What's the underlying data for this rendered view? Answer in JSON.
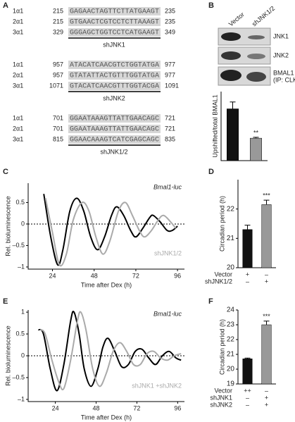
{
  "panel_labels": [
    "A",
    "B",
    "C",
    "D",
    "E",
    "F"
  ],
  "alignments": [
    {
      "rows": [
        {
          "name": "1α1",
          "start": 215,
          "sequence": "GAGAACTAGTTCTTATGAAGT",
          "end": 235
        },
        {
          "name": "2α1",
          "start": 215,
          "sequence": "GTGAACTCGTCCTCTTAAAGT",
          "end": 235
        },
        {
          "name": "3α1",
          "start": 329,
          "sequence": "GGGAGCTGGTCCTCATGAAGT",
          "end": 349
        }
      ],
      "shrna": "shJNK1"
    },
    {
      "rows": [
        {
          "name": "1α1",
          "start": 957,
          "sequence": "ATACATCAACGTCTGGTATGA",
          "end": 977
        },
        {
          "name": "2α1",
          "start": 957,
          "sequence": "GTATATTACTGTTTGGTATGA",
          "end": 977
        },
        {
          "name": "3α1",
          "start": 1071,
          "sequence": "GTACATCAACGTTTGGTACGA",
          "end": 1091
        }
      ],
      "shrna": "shJNK2"
    },
    {
      "rows": [
        {
          "name": "1α1",
          "start": 701,
          "sequence": "GGAATAAAGTTATTGAACAGC",
          "end": 721
        },
        {
          "name": "2α1",
          "start": 701,
          "sequence": "GGAATAAAGTTATTGAACAGC",
          "end": 721
        },
        {
          "name": "3α1",
          "start": 815,
          "sequence": "GGAACAAAGTCATCGAGCAGC",
          "end": 835
        }
      ],
      "shrna": "shJNK1/2"
    }
  ],
  "blot": {
    "labels": [
      "JNK1",
      "JNK2",
      "BMAL1",
      "(IP: CLK)"
    ]
  },
  "chart_data": [
    {
      "type": "bar",
      "ylabel": "Upshifted/total BMAL1",
      "categories": [
        "Vector",
        "shJNK1/2"
      ],
      "values": [
        0.3,
        0.13
      ],
      "errors": [
        0.04,
        0.005
      ],
      "colors": [
        "#111111",
        "#999999"
      ],
      "ylim": [
        0,
        0.4
      ],
      "significance": "**"
    },
    {
      "type": "line",
      "ylabel": "Rel. bioluminescence",
      "xlabel": "Time after Dex (h)",
      "annotation": "Bmal1-luc",
      "xlim": [
        10,
        100
      ],
      "xticks": [
        24,
        48,
        72,
        96
      ],
      "ylim": [
        -1.05,
        0.95
      ],
      "yticks": [
        {
          "value": -1,
          "label": "–1"
        },
        {
          "value": -0.5,
          "label": "–0.5"
        },
        0,
        0.5
      ],
      "hline": 0,
      "series": [
        {
          "color": "#000000",
          "x": [
            19,
            23,
            27,
            30,
            34,
            38,
            42,
            46,
            50,
            54,
            58,
            61,
            65,
            69,
            72,
            76,
            80,
            82,
            86,
            90,
            93,
            96
          ],
          "values": [
            0.7,
            -0.3,
            -0.95,
            -0.6,
            0.3,
            0.6,
            0.3,
            -0.3,
            -0.6,
            -0.3,
            0.2,
            0.4,
            0.2,
            -0.15,
            -0.3,
            -0.1,
            0.15,
            0.2,
            0.05,
            -0.15,
            -0.15,
            -0.05
          ]
        },
        {
          "name": "shJNK1/2",
          "color": "#aaaaaa",
          "x": [
            20,
            24,
            28,
            32,
            36,
            41,
            45,
            49,
            53,
            57,
            62,
            66,
            70,
            74,
            77,
            81,
            85,
            88,
            92,
            95
          ],
          "values": [
            0.6,
            -0.2,
            -0.95,
            -0.7,
            0.1,
            0.5,
            0.3,
            -0.3,
            -0.7,
            -0.4,
            0.3,
            0.5,
            0.2,
            -0.15,
            -0.3,
            -0.15,
            0.1,
            0.2,
            0.05,
            -0.1
          ]
        }
      ]
    },
    {
      "type": "bar",
      "ylabel": "Circadian period (h)",
      "values": [
        21.3,
        22.15
      ],
      "errors": [
        0.15,
        0.15
      ],
      "colors": [
        "#111111",
        "#999999"
      ],
      "ylim": [
        20,
        23
      ],
      "yticks": [
        20,
        21,
        22
      ],
      "significance": "***",
      "rows": [
        {
          "label": "Vector",
          "marks": [
            "+",
            "–"
          ]
        },
        {
          "label": "shJNK1/2",
          "marks": [
            "–",
            "+"
          ]
        }
      ]
    },
    {
      "type": "line",
      "ylabel": "Rel. bioluminescence",
      "xlabel": "Time after Dex (h)",
      "annotation": "Bmal1-luc",
      "xlim": [
        8,
        100
      ],
      "xticks": [
        24,
        48,
        72,
        96
      ],
      "ylim": [
        -1.05,
        1.05
      ],
      "yticks": [
        {
          "value": -1,
          "label": "–1"
        },
        {
          "value": -0.5,
          "label": "–0.5"
        },
        0,
        0.5,
        1
      ],
      "hline": 0,
      "series": [
        {
          "color": "#000000",
          "x": [
            14,
            17,
            21,
            25,
            29,
            33,
            35,
            38,
            41,
            45,
            49,
            52,
            55,
            59,
            63,
            67,
            71,
            75,
            79,
            83,
            87,
            91,
            95,
            98
          ],
          "values": [
            0.6,
            0.5,
            -0.3,
            -0.8,
            -0.2,
            0.8,
            1.0,
            0.5,
            -0.3,
            -0.7,
            -0.3,
            0.2,
            0.4,
            0.1,
            -0.25,
            -0.2,
            0.1,
            0.15,
            -0.05,
            -0.2,
            0,
            0.1,
            -0.05,
            -0.1
          ]
        },
        {
          "name": "shJNK1 +shJNK2",
          "color": "#aaaaaa",
          "x": [
            15,
            18,
            22,
            26,
            29,
            33,
            37,
            39,
            42,
            46,
            50,
            54,
            58,
            62,
            66,
            70,
            74,
            78,
            82,
            86,
            90,
            94,
            98
          ],
          "values": [
            0.6,
            0.5,
            -0.1,
            -0.6,
            -0.75,
            -0.1,
            0.8,
            1.0,
            0.6,
            -0.3,
            -0.7,
            -0.4,
            0.1,
            0.3,
            0.1,
            -0.2,
            -0.2,
            0.05,
            0.1,
            -0.05,
            -0.1,
            0,
            0.05
          ]
        }
      ]
    },
    {
      "type": "bar",
      "ylabel": "Circadian period (h)",
      "values": [
        20.7,
        23.0
      ],
      "errors": [
        0.05,
        0.25
      ],
      "colors": [
        "#111111",
        "#999999"
      ],
      "ylim": [
        19,
        24
      ],
      "yticks": [
        19,
        20,
        21,
        22,
        23,
        24
      ],
      "significance": "***",
      "rows": [
        {
          "label": "Vector",
          "marks": [
            "++",
            "–"
          ]
        },
        {
          "label": "shJNK1",
          "marks": [
            "–",
            "+"
          ]
        },
        {
          "label": "shJNK2",
          "marks": [
            "–",
            "+"
          ]
        }
      ]
    }
  ]
}
